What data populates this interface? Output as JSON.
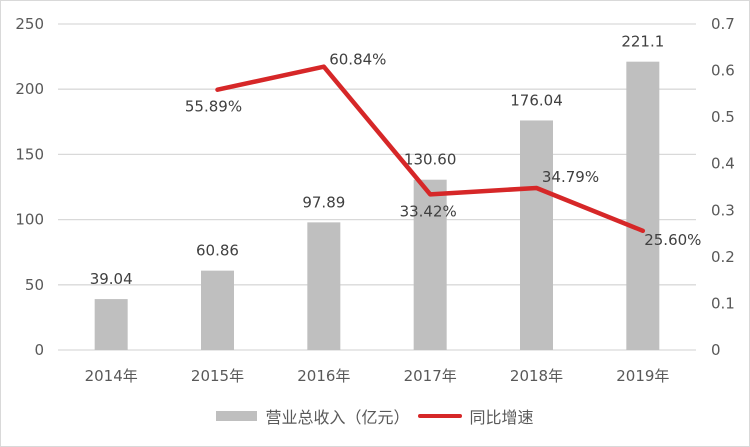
{
  "chart_data": {
    "type": "bar+line",
    "title": "",
    "categories": [
      "2014年",
      "2015年",
      "2016年",
      "2017年",
      "2018年",
      "2019年"
    ],
    "series": [
      {
        "name": "营业总收入（亿元）",
        "type": "bar",
        "axis": "left",
        "color": "#bfbfbf",
        "values": [
          39.04,
          60.86,
          97.89,
          130.6,
          176.04,
          221.1
        ],
        "labels": [
          "39.04",
          "60.86",
          "97.89",
          "130.60",
          "176.04",
          "221.1"
        ]
      },
      {
        "name": "同比增速",
        "type": "line",
        "axis": "right",
        "color": "#d62728",
        "values": [
          null,
          0.5589,
          0.6084,
          0.3342,
          0.3479,
          0.256
        ],
        "labels": [
          "",
          "55.89%",
          "60.84%",
          "33.42%",
          "34.79%",
          "25.60%"
        ]
      }
    ],
    "left_axis": {
      "ylim": [
        0,
        250
      ],
      "ticks": [
        "0",
        "50",
        "100",
        "150",
        "200",
        "250"
      ]
    },
    "right_axis": {
      "ylim": [
        0,
        0.7
      ],
      "ticks": [
        "0",
        "0.1",
        "0.2",
        "0.3",
        "0.4",
        "0.5",
        "0.6",
        "0.7"
      ]
    },
    "grid": true,
    "legend_position": "bottom",
    "xlabel": "",
    "ylabel": ""
  },
  "legend": {
    "bar_label": "营业总收入（亿元）",
    "line_label": "同比增速"
  }
}
